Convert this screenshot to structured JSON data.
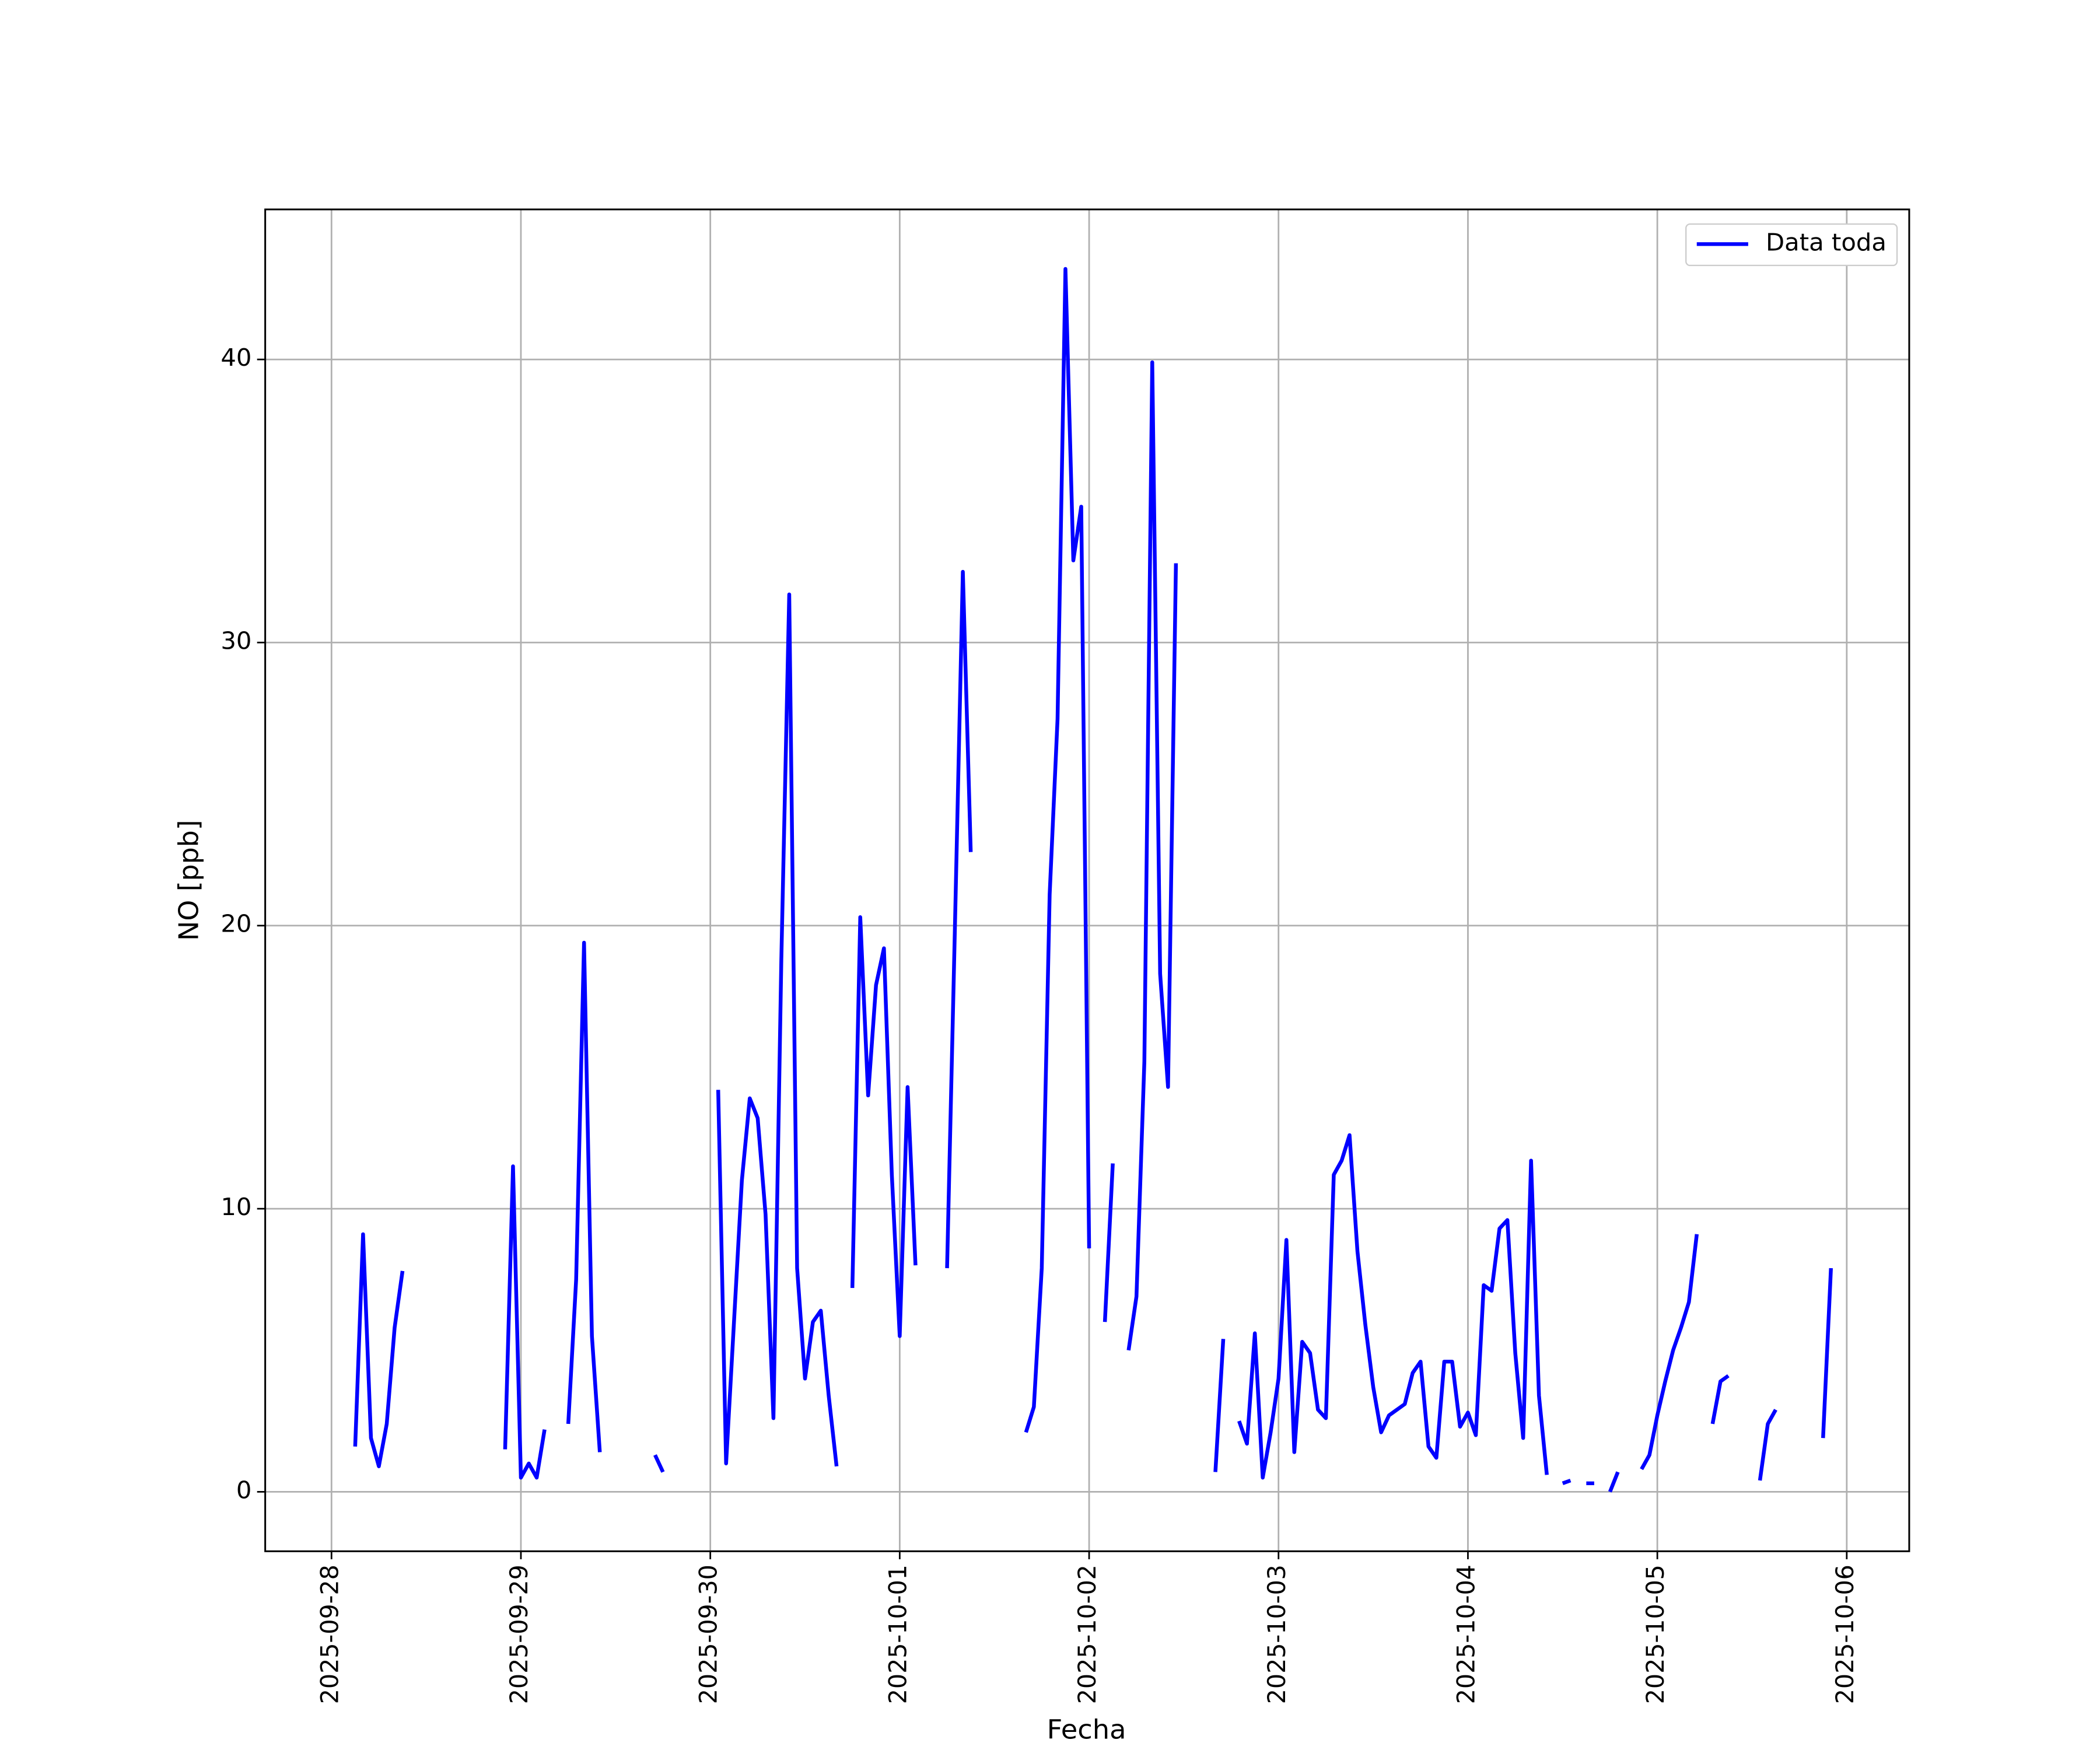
{
  "chart_data": {
    "type": "line",
    "xlabel": "Fecha",
    "ylabel": "NO [ppb]",
    "xlim": [
      "2025-09-27T15:36",
      "2025-10-06T07:55"
    ],
    "xticks": [
      "2025-09-28",
      "2025-09-29",
      "2025-09-30",
      "2025-10-01",
      "2025-10-02",
      "2025-10-03",
      "2025-10-04",
      "2025-10-05",
      "2025-10-06"
    ],
    "ylim": [
      -2.1,
      45.3
    ],
    "yticks": [
      0,
      10,
      20,
      30,
      40
    ],
    "grid": true,
    "legend": "upper right",
    "x": [
      "2025-09-28T03:00",
      "2025-09-28T04:00",
      "2025-09-28T05:00",
      "2025-09-28T06:00",
      "2025-09-28T07:00",
      "2025-09-28T08:00",
      "2025-09-28T09:00",
      "2025-09-28T10:00",
      "2025-09-28T22:00",
      "2025-09-28T23:00",
      "2025-09-29T00:00",
      "2025-09-29T01:00",
      "2025-09-29T02:00",
      "2025-09-29T03:00",
      "2025-09-29T04:00",
      "2025-09-29T06:00",
      "2025-09-29T07:00",
      "2025-09-29T08:00",
      "2025-09-29T09:00",
      "2025-09-29T10:00",
      "2025-09-29T11:00",
      "2025-09-29T17:00",
      "2025-09-29T18:00",
      "2025-09-29T19:00",
      "2025-09-30T01:00",
      "2025-09-30T02:00",
      "2025-09-30T03:00",
      "2025-09-30T04:00",
      "2025-09-30T05:00",
      "2025-09-30T06:00",
      "2025-09-30T07:00",
      "2025-09-30T08:00",
      "2025-09-30T09:00",
      "2025-09-30T10:00",
      "2025-09-30T11:00",
      "2025-09-30T12:00",
      "2025-09-30T13:00",
      "2025-09-30T14:00",
      "2025-09-30T15:00",
      "2025-09-30T16:00",
      "2025-09-30T17:00",
      "2025-09-30T18:00",
      "2025-09-30T19:00",
      "2025-09-30T20:00",
      "2025-09-30T21:00",
      "2025-09-30T22:00",
      "2025-09-30T23:00",
      "2025-10-01T00:00",
      "2025-10-01T01:00",
      "2025-10-01T02:00",
      "2025-10-01T03:00",
      "2025-10-01T06:00",
      "2025-10-01T07:00",
      "2025-10-01T08:00",
      "2025-10-01T09:00",
      "2025-10-01T10:00",
      "2025-10-01T16:00",
      "2025-10-01T17:00",
      "2025-10-01T18:00",
      "2025-10-01T19:00",
      "2025-10-01T20:00",
      "2025-10-01T21:00",
      "2025-10-01T22:00",
      "2025-10-01T23:00",
      "2025-10-02T00:00",
      "2025-10-02T01:00",
      "2025-10-02T02:00",
      "2025-10-02T03:00",
      "2025-10-02T04:00",
      "2025-10-02T05:00",
      "2025-10-02T06:00",
      "2025-10-02T07:00",
      "2025-10-02T08:00",
      "2025-10-02T09:00",
      "2025-10-02T10:00",
      "2025-10-02T11:00",
      "2025-10-02T12:00",
      "2025-10-02T16:00",
      "2025-10-02T17:00",
      "2025-10-02T18:00",
      "2025-10-02T19:00",
      "2025-10-02T20:00",
      "2025-10-02T21:00",
      "2025-10-02T22:00",
      "2025-10-02T23:00",
      "2025-10-03T00:00",
      "2025-10-03T01:00",
      "2025-10-03T02:00",
      "2025-10-03T03:00",
      "2025-10-03T04:00",
      "2025-10-03T05:00",
      "2025-10-03T06:00",
      "2025-10-03T07:00",
      "2025-10-03T08:00",
      "2025-10-03T09:00",
      "2025-10-03T10:00",
      "2025-10-03T11:00",
      "2025-10-03T12:00",
      "2025-10-03T13:00",
      "2025-10-03T14:00",
      "2025-10-03T15:00",
      "2025-10-03T16:00",
      "2025-10-03T17:00",
      "2025-10-03T18:00",
      "2025-10-03T19:00",
      "2025-10-03T20:00",
      "2025-10-03T21:00",
      "2025-10-03T22:00",
      "2025-10-03T23:00",
      "2025-10-04T00:00",
      "2025-10-04T01:00",
      "2025-10-04T02:00",
      "2025-10-04T03:00",
      "2025-10-04T04:00",
      "2025-10-04T05:00",
      "2025-10-04T06:00",
      "2025-10-04T07:00",
      "2025-10-04T08:00",
      "2025-10-04T09:00",
      "2025-10-04T10:00",
      "2025-10-04T11:00",
      "2025-10-04T12:00",
      "2025-10-04T13:00",
      "2025-10-04T14:00",
      "2025-10-04T15:00",
      "2025-10-04T16:00",
      "2025-10-04T17:00",
      "2025-10-04T18:00",
      "2025-10-04T19:00",
      "2025-10-04T20:00",
      "2025-10-04T22:00",
      "2025-10-04T23:00",
      "2025-10-05T00:00",
      "2025-10-05T01:00",
      "2025-10-05T02:00",
      "2025-10-05T03:00",
      "2025-10-05T04:00",
      "2025-10-05T05:00",
      "2025-10-05T06:00",
      "2025-10-05T07:00",
      "2025-10-05T08:00",
      "2025-10-05T09:00",
      "2025-10-05T10:00",
      "2025-10-05T13:00",
      "2025-10-05T14:00",
      "2025-10-05T15:00",
      "2025-10-05T16:00",
      "2025-10-05T21:00",
      "2025-10-05T22:00"
    ],
    "series": [
      {
        "name": "Data toda",
        "color": "#0000ff",
        "values": [
          1.6,
          9.1,
          1.9,
          0.9,
          2.4,
          5.8,
          7.8,
          null,
          1.5,
          11.5,
          0.5,
          1.0,
          0.5,
          2.2,
          null,
          2.4,
          7.5,
          19.4,
          5.5,
          1.4,
          null,
          1.3,
          0.7,
          null,
          14.2,
          1.0,
          6.0,
          11.0,
          13.9,
          13.2,
          9.8,
          2.6,
          18.8,
          31.7,
          7.9,
          4.0,
          6.0,
          6.4,
          3.4,
          0.9,
          null,
          7.2,
          20.3,
          14.0,
          17.9,
          19.2,
          11.2,
          5.5,
          14.3,
          8.0,
          null,
          7.9,
          20.0,
          32.5,
          22.6,
          null,
          2.1,
          3.0,
          7.9,
          21.1,
          27.3,
          43.2,
          32.9,
          34.8,
          8.6,
          null,
          6.0,
          11.6,
          null,
          5.0,
          6.9,
          15.2,
          39.9,
          18.3,
          14.3,
          32.8,
          null,
          0.7,
          5.4,
          null,
          2.5,
          1.7,
          5.6,
          0.5,
          2.1,
          4.0,
          8.9,
          1.4,
          5.3,
          4.9,
          2.9,
          2.6,
          11.2,
          11.7,
          12.6,
          8.5,
          5.9,
          3.7,
          2.1,
          2.7,
          2.9,
          3.1,
          4.2,
          4.6,
          1.6,
          1.2,
          4.6,
          4.6,
          2.3,
          2.8,
          2.0,
          7.3,
          7.1,
          9.3,
          9.6,
          4.9,
          1.9,
          11.7,
          3.4,
          0.6,
          null,
          0.3,
          0.4,
          null,
          0.3,
          0.3,
          null,
          0.0,
          0.7,
          null,
          0.8,
          1.3,
          2.7,
          3.9,
          5.0,
          5.8,
          6.7,
          9.1,
          null,
          2.4,
          3.9,
          4.1,
          null,
          0.4,
          2.4,
          2.9,
          null,
          1.9,
          7.9
        ]
      }
    ]
  }
}
